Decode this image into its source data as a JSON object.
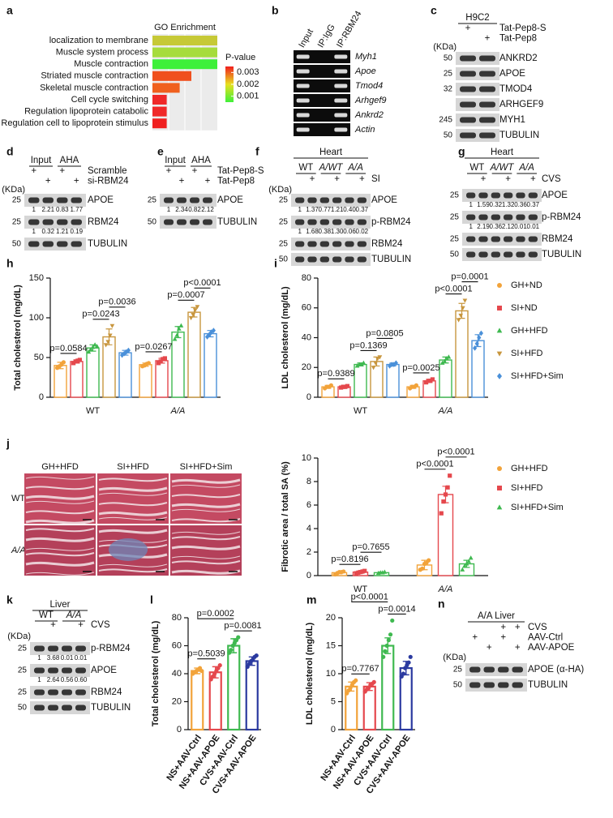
{
  "chart_data": [
    {
      "type": "barh",
      "panel": "a",
      "title": "GO Enrichment",
      "categories": [
        "localization to membrane",
        "Muscle system process",
        "Muscle contraction",
        "Striated muscle contraction",
        "Skeletal muscle contraction",
        "Cell cycle switching",
        "Regulation lipoprotein catabolic",
        "Regulation cell to lipoprotein stimulus"
      ],
      "values": [
        1,
        1,
        1,
        0.6,
        0.42,
        0.22,
        0.22,
        0.22
      ],
      "colors": [
        "#c6c936",
        "#a6dc3c",
        "#3ef03a",
        "#f0501e",
        "#f0601e",
        "#f02828",
        "#f02828",
        "#f02020"
      ],
      "xlim": [
        0,
        1
      ],
      "colorbar": {
        "label": "P-value",
        "lim": [
          0.0005,
          0.0035
        ],
        "ticks": [
          0.003,
          0.002,
          0.001
        ],
        "colors": [
          "#f01e1e",
          "#e8e020",
          "#3ef03a"
        ]
      }
    },
    {
      "type": "grouped_bar",
      "panel": "h",
      "ylabel": "Total cholesterol (mg/dL)",
      "categories": [
        "WT",
        "A/A"
      ],
      "ylim": [
        0,
        150
      ],
      "yticks": [
        0,
        50,
        100,
        150
      ],
      "series": [
        {
          "color": "#f2a33a",
          "marker": "circle",
          "values": [
            40,
            41
          ],
          "errors": [
            4,
            2
          ],
          "points": [
            [
              37,
              39,
              41,
              44
            ],
            [
              39,
              40,
              42,
              43
            ]
          ]
        },
        {
          "color": "#e5484d",
          "marker": "square",
          "values": [
            45,
            46
          ],
          "errors": [
            2,
            3
          ],
          "points": [
            [
              43,
              45,
              46,
              47
            ],
            [
              43,
              45,
              48,
              49
            ]
          ]
        },
        {
          "color": "#3fb950",
          "marker": "triangle",
          "values": [
            62,
            82
          ],
          "errors": [
            4,
            7
          ],
          "points": [
            [
              57,
              60,
              63,
              66,
              64
            ],
            [
              73,
              78,
              86,
              90
            ]
          ]
        },
        {
          "color": "#c8963e",
          "marker": "triangle-down",
          "values": [
            76,
            107
          ],
          "errors": [
            10,
            6
          ],
          "points": [
            [
              66,
              70,
              78,
              90
            ],
            [
              100,
              104,
              110,
              114
            ]
          ]
        },
        {
          "color": "#4a90d9",
          "marker": "diamond",
          "values": [
            56,
            80
          ],
          "errors": [
            3,
            4
          ],
          "points": [
            [
              53,
              55,
              57,
              59
            ],
            [
              76,
              79,
              82,
              84
            ]
          ]
        }
      ],
      "comparisons": [
        {
          "label": "p=0.0584",
          "category": 0,
          "between": [
            0,
            1
          ]
        },
        {
          "label": "p=0.0243",
          "category": 0,
          "between": [
            2,
            3
          ]
        },
        {
          "label": "p=0.0036",
          "category": 0,
          "between": [
            3,
            4
          ]
        },
        {
          "label": "p=0.0267",
          "category": 1,
          "between": [
            0,
            1
          ]
        },
        {
          "label": "p=0.0007",
          "category": 1,
          "between": [
            2,
            3
          ]
        },
        {
          "label": "p<0.0001",
          "category": 1,
          "between": [
            3,
            4
          ]
        }
      ]
    },
    {
      "type": "grouped_bar",
      "panel": "i",
      "ylabel": "LDL cholesterol (mg/dL)",
      "categories": [
        "WT",
        "A/A"
      ],
      "ylim": [
        0,
        80
      ],
      "yticks": [
        0,
        20,
        40,
        60,
        80
      ],
      "legend": "right",
      "series": [
        {
          "name": "GH+ND",
          "color": "#f2a33a",
          "marker": "circle",
          "values": [
            7,
            7
          ],
          "errors": [
            1,
            1
          ],
          "points": [
            [
              6,
              7,
              7,
              8
            ],
            [
              6,
              7,
              7,
              8
            ]
          ]
        },
        {
          "name": "SI+ND",
          "color": "#e5484d",
          "marker": "square",
          "values": [
            7,
            11
          ],
          "errors": [
            1,
            1
          ],
          "points": [
            [
              6.5,
              7,
              7,
              7.5
            ],
            [
              10,
              11,
              11,
              12
            ]
          ]
        },
        {
          "name": "GH+HFD",
          "color": "#3fb950",
          "marker": "triangle",
          "values": [
            22,
            25
          ],
          "errors": [
            1,
            2
          ],
          "points": [
            [
              21,
              22,
              22,
              23
            ],
            [
              23,
              24,
              26,
              27
            ]
          ]
        },
        {
          "name": "SI+HFD",
          "color": "#c8963e",
          "marker": "triangle-down",
          "values": [
            24,
            58
          ],
          "errors": [
            3,
            5
          ],
          "points": [
            [
              20,
              23,
              26,
              27
            ],
            [
              52,
              55,
              60,
              65
            ]
          ]
        },
        {
          "name": "SI+HFD+Sim",
          "color": "#4a90d9",
          "marker": "diamond",
          "values": [
            22,
            38
          ],
          "errors": [
            1,
            4
          ],
          "points": [
            [
              21,
              22,
              22,
              23
            ],
            [
              33,
              36,
              40,
              43
            ]
          ]
        }
      ],
      "comparisons": [
        {
          "label": "p=0.9389",
          "category": 0,
          "between": [
            0,
            1
          ]
        },
        {
          "label": "p=0.1369",
          "category": 0,
          "between": [
            2,
            3
          ]
        },
        {
          "label": "p=0.0805",
          "category": 0,
          "between": [
            3,
            4
          ]
        },
        {
          "label": "p=0.0025",
          "category": 1,
          "between": [
            0,
            1
          ]
        },
        {
          "label": "p<0.0001",
          "category": 1,
          "between": [
            2,
            3
          ]
        },
        {
          "label": "p=0.0001",
          "category": 1,
          "between": [
            3,
            4
          ]
        }
      ]
    },
    {
      "type": "grouped_bar",
      "ylabel": "Fibrotic area / total SA (%)",
      "categories": [
        "WT",
        "A/A"
      ],
      "ylim": [
        0,
        10
      ],
      "yticks": [
        0,
        2,
        4,
        6,
        8,
        10
      ],
      "legend": "right",
      "series": [
        {
          "name": "GH+HFD",
          "color": "#f2a33a",
          "marker": "circle",
          "values": [
            0.25,
            0.9
          ],
          "errors": [
            0.1,
            0.4
          ],
          "points": [
            [
              0.1,
              0.2,
              0.3,
              0.3,
              0.35
            ],
            [
              0.5,
              0.6,
              1.0,
              1.1,
              1.3
            ]
          ]
        },
        {
          "name": "SI+HFD",
          "color": "#e5484d",
          "marker": "square",
          "values": [
            0.3,
            6.9
          ],
          "errors": [
            0.1,
            0.7
          ],
          "points": [
            [
              0.2,
              0.25,
              0.3,
              0.35,
              0.4
            ],
            [
              5.3,
              6.3,
              6.9,
              7.5,
              8.5
            ]
          ]
        },
        {
          "name": "SI+HFD+Sim",
          "color": "#3fb950",
          "marker": "triangle",
          "values": [
            0.25,
            1.0
          ],
          "errors": [
            0.05,
            0.3
          ],
          "points": [
            [
              0.2,
              0.25,
              0.25,
              0.3
            ],
            [
              0.5,
              0.8,
              1.0,
              1.2,
              1.5
            ]
          ]
        }
      ],
      "comparisons": [
        {
          "label": "p=0.8196",
          "category": 0,
          "between": [
            0,
            1
          ]
        },
        {
          "label": "p=0.7655",
          "category": 0,
          "between": [
            1,
            2
          ]
        },
        {
          "label": "p<0.0001",
          "category": 1,
          "between": [
            0,
            1
          ]
        },
        {
          "label": "p<0.0001",
          "category": 1,
          "between": [
            1,
            2
          ]
        }
      ]
    },
    {
      "type": "bar",
      "panel": "l",
      "ylabel": "Total cholesterol (mg/dL)",
      "categories": [
        "NS+AAV-Ctrl",
        "NS+AAV-APOE",
        "CVS+AAV-Ctrl",
        "CVS+AAV-APOE"
      ],
      "colors": [
        "#f2a33a",
        "#e5484d",
        "#3fb950",
        "#2b3aa0"
      ],
      "ylim": [
        0,
        80
      ],
      "yticks": [
        0,
        20,
        40,
        60,
        80
      ],
      "values": [
        42,
        41,
        60,
        49
      ],
      "errors": [
        2,
        4,
        5,
        3
      ],
      "points": [
        [
          40,
          41,
          42,
          43,
          44,
          42
        ],
        [
          36,
          38,
          40,
          42,
          44,
          46
        ],
        [
          55,
          57,
          60,
          62,
          64,
          66
        ],
        [
          45,
          47,
          49,
          50,
          52,
          53
        ]
      ],
      "comparisons": [
        {
          "label": "p=0.5039",
          "between": [
            0,
            1
          ]
        },
        {
          "label": "p=0.0081",
          "between": [
            2,
            3
          ]
        },
        {
          "label": "p=0.0002",
          "between": [
            0,
            2
          ]
        }
      ]
    },
    {
      "type": "bar",
      "panel": "m",
      "ylabel": "LDL cholesterol (mg/dL)",
      "categories": [
        "NS+AAV-Ctrl",
        "NS+AAV-APOE",
        "CVS+AAV-Ctrl",
        "CVS+AAV-APOE"
      ],
      "colors": [
        "#f2a33a",
        "#e5484d",
        "#3fb950",
        "#2b3aa0"
      ],
      "ylim": [
        0,
        20
      ],
      "yticks": [
        0,
        5,
        10,
        15,
        20
      ],
      "values": [
        7.7,
        7.7,
        15,
        11
      ],
      "errors": [
        0.8,
        0.7,
        1.4,
        1.2
      ],
      "points": [
        [
          6.5,
          7,
          7.5,
          8,
          8.5,
          8.8
        ],
        [
          6.8,
          7.2,
          7.5,
          8,
          8.2,
          8.5
        ],
        [
          13,
          14,
          15,
          16,
          17,
          19.5
        ],
        [
          9.5,
          10,
          11,
          11.5,
          12,
          13
        ]
      ],
      "comparisons": [
        {
          "label": "p=0.7767",
          "between": [
            0,
            1
          ]
        },
        {
          "label": "p=0.0014",
          "between": [
            2,
            3
          ]
        },
        {
          "label": "p<0.0001",
          "between": [
            0,
            2
          ]
        }
      ]
    }
  ],
  "gel": {
    "panel": "b",
    "lanes": [
      "Input",
      "IP:IgG",
      "IP:RBM24"
    ],
    "rows": [
      "Myh1",
      "Apoe",
      "Tmod4",
      "Arhgef9",
      "Ankrd2",
      "Actin"
    ]
  },
  "blots": [
    {
      "panel": "c",
      "title": "H9C2",
      "conditions": [
        {
          "label": "Tat-Pep8-S",
          "marks": [
            "+",
            null
          ]
        },
        {
          "label": "Tat-Pep8",
          "marks": [
            null,
            "+"
          ]
        }
      ],
      "kda": "(KDa)",
      "rows": [
        {
          "label": "ANKRD2",
          "mw": "50"
        },
        {
          "label": "APOE",
          "mw": "25"
        },
        {
          "label": "TMOD4",
          "mw": "32"
        },
        {
          "label": "ARHGEF9"
        },
        {
          "label": "MYH1",
          "mw": "245"
        },
        {
          "label": "TUBULIN",
          "mw": "50"
        }
      ]
    },
    {
      "panel": "d",
      "groups": [
        "Input",
        "AHA"
      ],
      "conditions": [
        {
          "label": "Scramble",
          "marks": [
            "+",
            null,
            "+",
            null
          ]
        },
        {
          "label": "si-RBM24",
          "marks": [
            null,
            "+",
            null,
            "+"
          ]
        }
      ],
      "kda": "(KDa)",
      "rows": [
        {
          "label": "APOE",
          "mw": "25",
          "quant": [
            "1",
            "2.21",
            "0.83",
            "1.77"
          ]
        },
        {
          "label": "RBM24",
          "mw": "25",
          "quant": [
            "1",
            "0.32",
            "1.21",
            "0.19"
          ]
        },
        {
          "label": "TUBULIN",
          "mw": "50"
        }
      ]
    },
    {
      "panel": "e",
      "groups": [
        "Input",
        "AHA"
      ],
      "conditions": [
        {
          "label": "Tat-Pep8-S",
          "marks": [
            "+",
            null,
            "+",
            null
          ]
        },
        {
          "label": "Tat-Pep8",
          "marks": [
            null,
            "+",
            null,
            "+"
          ]
        }
      ],
      "rows": [
        {
          "label": "APOE",
          "mw": "25",
          "quant": [
            "1",
            "2.34",
            "0.82",
            "2.12"
          ]
        },
        {
          "label": "TUBULIN",
          "mw": "50"
        }
      ]
    },
    {
      "panel": "f",
      "title": "Heart",
      "groups": [
        "WT",
        "A/WT",
        "A/A"
      ],
      "conditions": [
        {
          "label": "SI",
          "marks": [
            null,
            "+",
            null,
            "+",
            null,
            "+"
          ]
        }
      ],
      "kda": "(KDa)",
      "rows": [
        {
          "label": "APOE",
          "mw": "25",
          "quant": [
            "1",
            "1.37",
            "0.77",
            "1.21",
            "0.40",
            "0.37"
          ]
        },
        {
          "label": "p-RBM24",
          "mw": "25",
          "quant": [
            "1",
            "1.68",
            "0.38",
            "1.30",
            "0.06",
            "0.02"
          ]
        },
        {
          "label": "RBM24",
          "mw": "25"
        },
        {
          "label": "TUBULIN",
          "mw": "50"
        }
      ]
    },
    {
      "panel": "g",
      "title": "Heart",
      "groups": [
        "WT",
        "A/WT",
        "A/A"
      ],
      "conditions": [
        {
          "label": "CVS",
          "marks": [
            null,
            "+",
            null,
            "+",
            null,
            "+"
          ]
        }
      ],
      "rows": [
        {
          "label": "APOE",
          "mw": "25",
          "quant": [
            "1",
            "1.59",
            "0.32",
            "1.32",
            "0.36",
            "0.37"
          ]
        },
        {
          "label": "p-RBM24",
          "mw": "25",
          "quant": [
            "1",
            "2.19",
            "0.36",
            "2.12",
            "0.01",
            "0.01"
          ]
        },
        {
          "label": "RBM24",
          "mw": "25"
        },
        {
          "label": "TUBULIN",
          "mw": "50"
        }
      ]
    },
    {
      "panel": "k",
      "title": "Liver",
      "groups": [
        "WT",
        "A/A"
      ],
      "conditions": [
        {
          "label": "CVS",
          "marks": [
            null,
            "+",
            null,
            "+"
          ]
        }
      ],
      "kda": "(KDa)",
      "rows": [
        {
          "label": "p-RBM24",
          "mw": "25",
          "quant": [
            "1",
            "3.68",
            "0.01",
            "0.01"
          ]
        },
        {
          "label": "APOE",
          "mw": "25",
          "quant": [
            "1",
            "2.64",
            "0.56",
            "0.60"
          ]
        },
        {
          "label": "RBM24",
          "mw": "25"
        },
        {
          "label": "TUBULIN",
          "mw": "50"
        }
      ]
    },
    {
      "panel": "n",
      "title": "A/A Liver",
      "conditions": [
        {
          "label": "CVS",
          "marks": [
            null,
            null,
            "+",
            "+"
          ]
        },
        {
          "label": "AAV-Ctrl",
          "marks": [
            "+",
            null,
            "+",
            null
          ]
        },
        {
          "label": "AAV-APOE",
          "marks": [
            null,
            "+",
            null,
            "+"
          ]
        }
      ],
      "kda": "(KDa)",
      "rows": [
        {
          "label": "APOE (α-HA)",
          "mw": "25"
        },
        {
          "label": "TUBULIN",
          "mw": "50"
        }
      ]
    }
  ],
  "micrographs": {
    "panel": "j",
    "columns": [
      "GH+HFD",
      "SI+HFD",
      "SI+HFD+Sim"
    ],
    "rows": [
      "WT",
      "A/A"
    ]
  }
}
